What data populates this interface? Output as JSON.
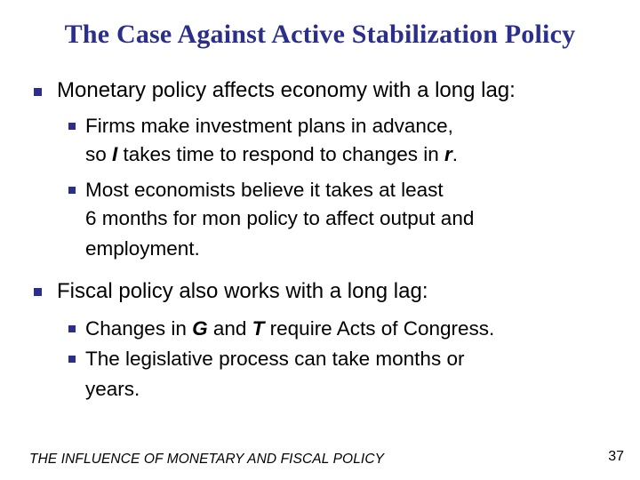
{
  "slide": {
    "title": "The Case Against Active Stabilization Policy",
    "accent_color": "#2b2e8a"
  },
  "bullets": {
    "monetary": {
      "text": "Monetary policy affects economy with a long lag:",
      "sub1": {
        "line1": "Firms make investment plans in advance,",
        "line2_pre": "so ",
        "line2_sym1": "I",
        "line2_mid": " takes time to respond to changes in ",
        "line2_sym2": "r",
        "line2_post": "."
      },
      "sub2": {
        "line1": "Most economists believe it takes at least",
        "line2": "6 months for mon policy to affect output and",
        "line3": "employment."
      }
    },
    "fiscal": {
      "text": "Fiscal policy also works with a long lag:",
      "sub1": {
        "pre": "Changes in ",
        "sym1": "G",
        "mid": " and ",
        "sym2": "T",
        "post": " require Acts of Congress."
      },
      "sub2": {
        "line1": "The legislative process can take months or",
        "line2": "years."
      }
    }
  },
  "footer": {
    "title": "THE INFLUENCE OF MONETARY AND FISCAL POLICY",
    "page_number": "37"
  }
}
